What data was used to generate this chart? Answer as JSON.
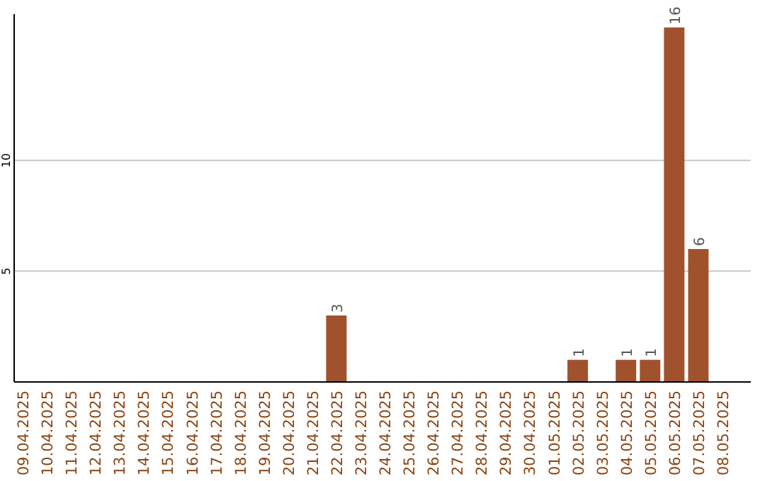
{
  "chart_data": {
    "type": "bar",
    "categories": [
      "09.04.2025",
      "10.04.2025",
      "11.04.2025",
      "12.04.2025",
      "13.04.2025",
      "14.04.2025",
      "15.04.2025",
      "16.04.2025",
      "17.04.2025",
      "18.04.2025",
      "19.04.2025",
      "20.04.2025",
      "21.04.2025",
      "22.04.2025",
      "23.04.2025",
      "24.04.2025",
      "25.04.2025",
      "26.04.2025",
      "27.04.2025",
      "28.04.2025",
      "29.04.2025",
      "30.04.2025",
      "01.05.2025",
      "02.05.2025",
      "03.05.2025",
      "04.05.2025",
      "05.05.2025",
      "06.05.2025",
      "07.05.2025",
      "08.05.2025"
    ],
    "values": [
      0,
      0,
      0,
      0,
      0,
      0,
      0,
      0,
      0,
      0,
      0,
      0,
      0,
      3,
      0,
      0,
      0,
      0,
      0,
      0,
      0,
      0,
      0,
      1,
      0,
      1,
      1,
      16,
      6,
      0
    ],
    "value_labels": [
      null,
      null,
      null,
      null,
      null,
      null,
      null,
      null,
      null,
      null,
      null,
      null,
      null,
      "3",
      null,
      null,
      null,
      null,
      null,
      null,
      null,
      null,
      null,
      "1",
      null,
      "1",
      "1",
      "16",
      "6",
      null
    ],
    "color": "#a0522d",
    "ylim": [
      0,
      16.6
    ],
    "yticks": [
      5,
      10
    ],
    "grid": "y"
  }
}
